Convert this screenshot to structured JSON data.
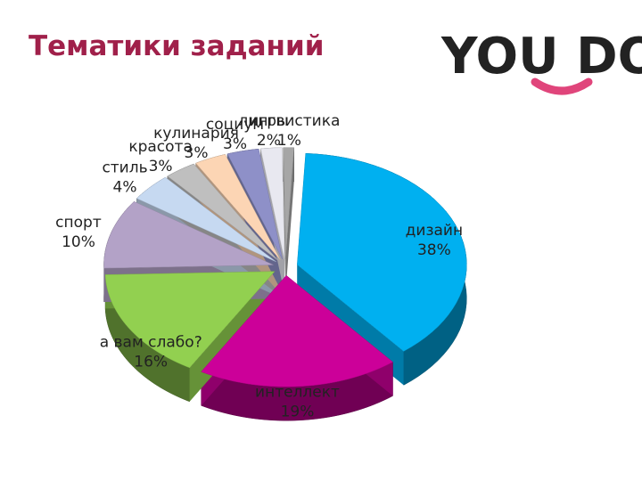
{
  "header": {
    "title": "Тематики заданий",
    "logo": "YOU DO"
  },
  "chart_data": {
    "type": "pie",
    "categories": [
      "дизайн",
      "интеллект",
      "а вам слабо?",
      "спорт",
      "стиль",
      "красота",
      "кулинария",
      "социум",
      "игры",
      "лингвистика"
    ],
    "values": [
      38,
      19,
      16,
      10,
      4,
      3,
      3,
      3,
      2,
      1
    ],
    "value_labels": [
      "38%",
      "19%",
      "16%",
      "10%",
      "4%",
      "3%",
      "3%",
      "3%",
      "2%",
      "1%"
    ],
    "colors": [
      "#00b0f0",
      "#cc0099",
      "#92d050",
      "#b3a2c7",
      "#c6d9f1",
      "#bfbfbf",
      "#fcd5b4",
      "#8e90c8",
      "#e8e8f0",
      "#a6a6a6"
    ]
  }
}
